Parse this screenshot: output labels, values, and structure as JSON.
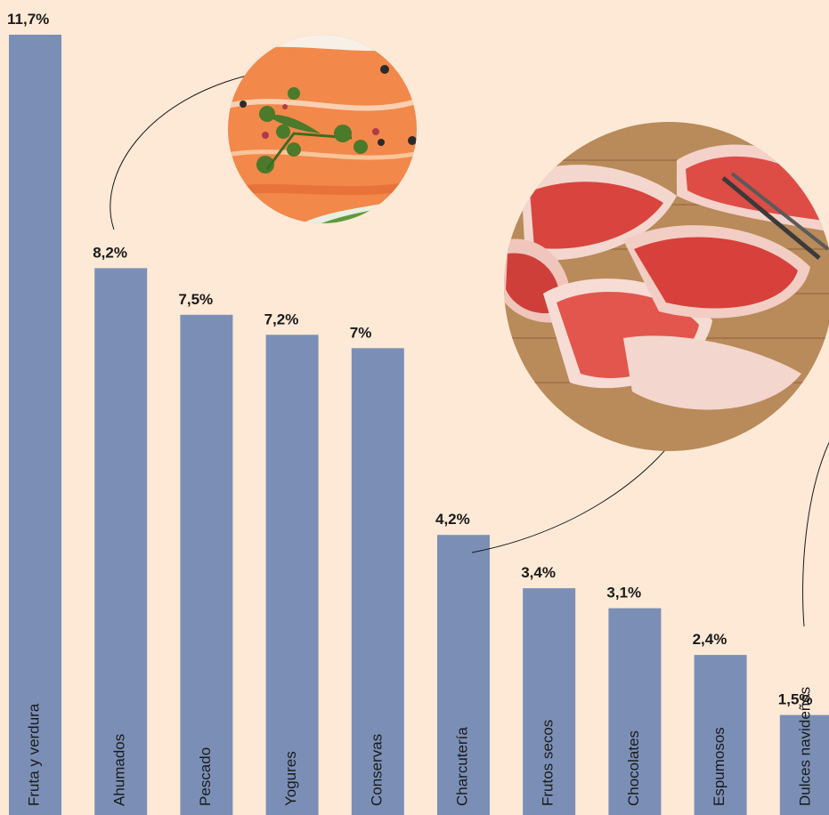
{
  "chart_data": {
    "type": "bar",
    "categories": [
      "Fruta y verdura",
      "Ahumados",
      "Pescado",
      "Yogures",
      "Conservas",
      "Charcutería",
      "Frutos secos",
      "Chocolates",
      "Espumosos",
      "Dulces navideños"
    ],
    "values": [
      11.7,
      8.2,
      7.5,
      7.2,
      7.0,
      4.2,
      3.4,
      3.1,
      2.4,
      1.5
    ],
    "value_labels": [
      "11,7%",
      "8,2%",
      "7,5%",
      "7,2%",
      "7%",
      "4,2%",
      "3,4%",
      "3,1%",
      "2,4%",
      "1,5%"
    ],
    "ylim": [
      0,
      11.7
    ],
    "grid": false,
    "legend": "none",
    "bar_color": "#7b8fb6",
    "background": "#fde9d6"
  },
  "photos": [
    {
      "name": "smoked-salmon-photo",
      "connects_to": "Ahumados",
      "colors": [
        "#f2884a",
        "#e8733a",
        "#fbd0b0"
      ]
    },
    {
      "name": "cured-ham-photo",
      "connects_to": "Charcutería",
      "colors": [
        "#d9443e",
        "#f0a7a0",
        "#b98a5a"
      ]
    }
  ]
}
